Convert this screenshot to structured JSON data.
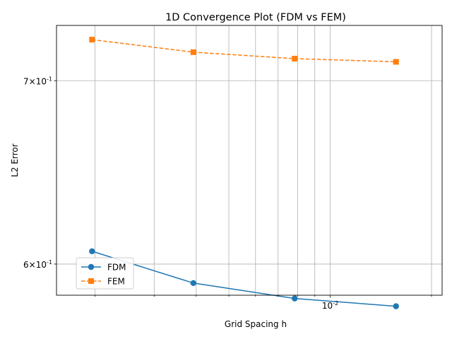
{
  "chart_data": {
    "type": "line",
    "title": "1D Convergence Plot (FDM vs FEM)",
    "xlabel": "Grid Spacing h",
    "ylabel": "L2 Error",
    "xscale": "log",
    "yscale": "log",
    "xlim": [
      0.001538,
      0.0215
    ],
    "ylim": [
      0.5845,
      0.7333
    ],
    "x": [
      0.001961,
      0.003922,
      0.007843,
      0.015686
    ],
    "x_ticks": [
      {
        "value": 0.002,
        "label": ""
      },
      {
        "value": 0.003,
        "label": ""
      },
      {
        "value": 0.004,
        "label": ""
      },
      {
        "value": 0.005,
        "label": ""
      },
      {
        "value": 0.006,
        "label": ""
      },
      {
        "value": 0.007,
        "label": ""
      },
      {
        "value": 0.008,
        "label": ""
      },
      {
        "value": 0.009,
        "label": ""
      },
      {
        "value": 0.01,
        "label": "10^{-2}",
        "major": true
      },
      {
        "value": 0.02,
        "label": ""
      }
    ],
    "y_ticks": [
      {
        "value": 0.6,
        "label": "6×10^{-1}"
      },
      {
        "value": 0.7,
        "label": "7×10^{-1}"
      }
    ],
    "grid": true,
    "legend_position": "lower-left",
    "series": [
      {
        "name": "FDM",
        "values": [
          0.6065,
          0.5905,
          0.5829,
          0.5791
        ],
        "color": "#1f77b4",
        "marker": "circle",
        "line_style": "solid"
      },
      {
        "name": "FEM",
        "values": [
          0.7246,
          0.717,
          0.7131,
          0.7112
        ],
        "color": "#ff7f0e",
        "marker": "square",
        "line_style": "dashed"
      }
    ]
  }
}
